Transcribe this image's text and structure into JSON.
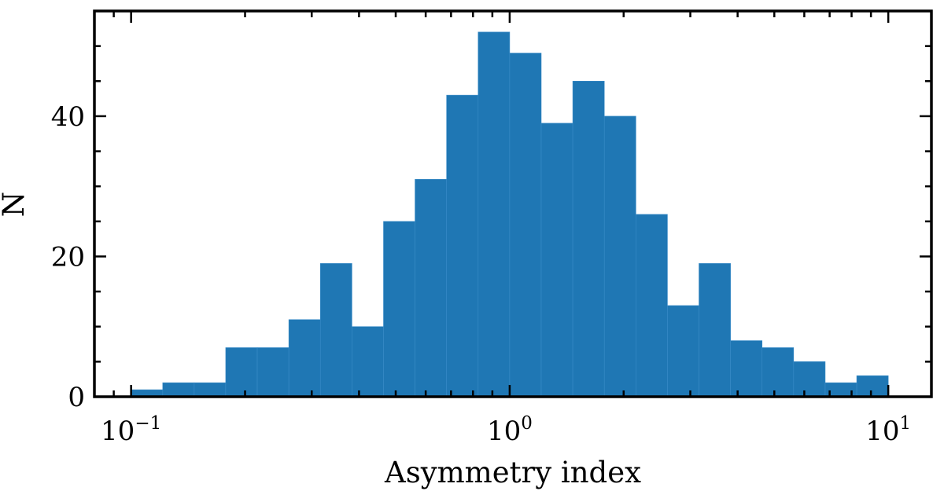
{
  "chart_data": {
    "type": "bar",
    "title": "",
    "xlabel": "Asymmetry index",
    "ylabel": "N",
    "x_scale": "log",
    "xlim": [
      0.08,
      13
    ],
    "ylim": [
      0,
      55
    ],
    "x_ticks": [
      {
        "value": 0.1,
        "base": "10",
        "exp": "−1"
      },
      {
        "value": 1,
        "base": "10",
        "exp": "0"
      },
      {
        "value": 10,
        "base": "10",
        "exp": "1"
      }
    ],
    "y_ticks": [
      0,
      20,
      40
    ],
    "bar_color": "#1f77b4",
    "bin_edges": [
      0.1,
      0.1212,
      0.1468,
      0.1778,
      0.2154,
      0.261,
      0.3162,
      0.3831,
      0.4642,
      0.5623,
      0.6813,
      0.8254,
      1.0,
      1.2115,
      1.4678,
      1.7783,
      2.1544,
      2.6102,
      3.1623,
      3.8312,
      4.6416,
      5.6234,
      6.8129,
      8.254,
      10.0
    ],
    "counts": [
      1,
      2,
      2,
      7,
      7,
      11,
      19,
      10,
      25,
      31,
      43,
      52,
      49,
      39,
      45,
      40,
      26,
      13,
      19,
      8,
      7,
      5,
      2,
      3
    ]
  }
}
